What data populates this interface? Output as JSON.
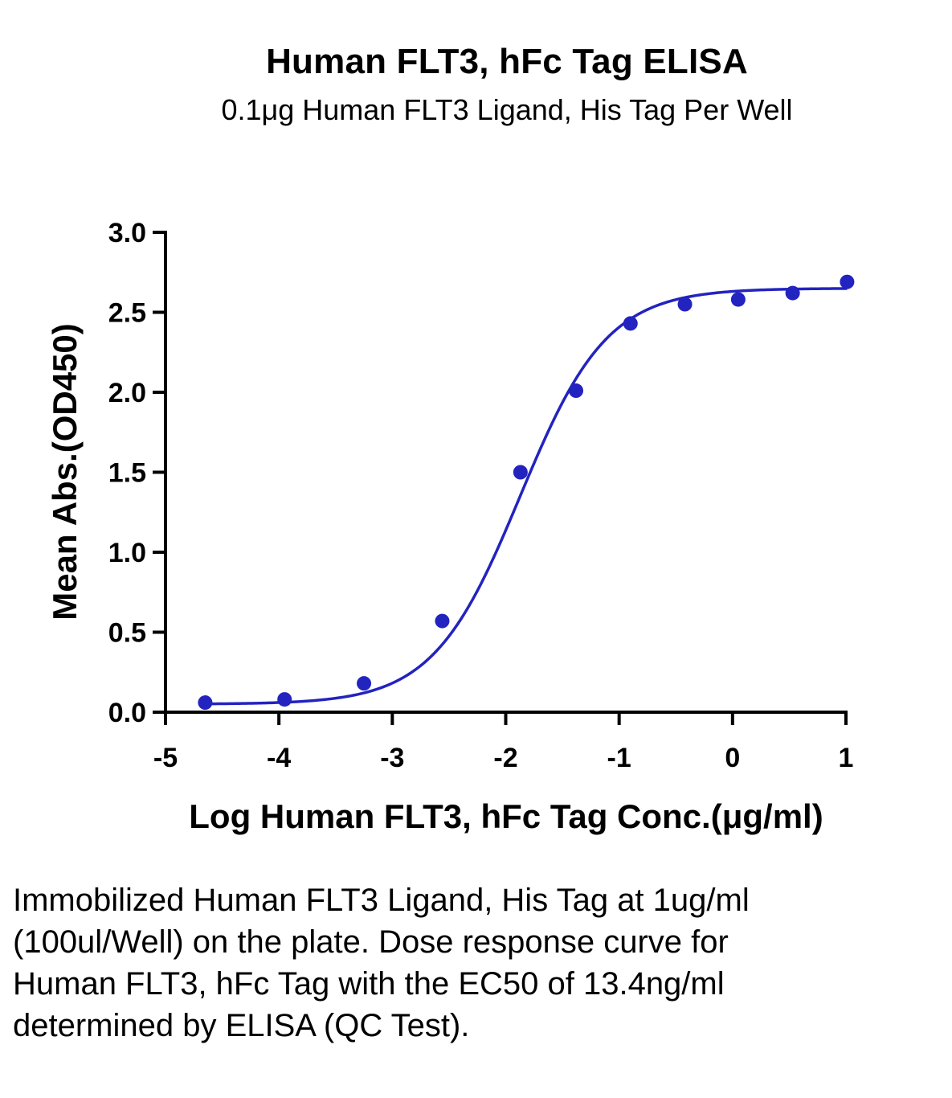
{
  "chart_data": {
    "type": "scatter",
    "title": "Human FLT3, hFc Tag ELISA",
    "subtitle": "0.1μg Human FLT3 Ligand, His Tag Per Well",
    "xlabel": "Log Human FLT3, hFc Tag Conc.(μg/ml)",
    "ylabel": "Mean Abs.(OD450)",
    "xlim": [
      -5,
      1
    ],
    "ylim": [
      0,
      3
    ],
    "xticks": [
      -5,
      -4,
      -3,
      -2,
      -1,
      0,
      1
    ],
    "yticks": [
      0,
      0.5,
      1,
      1.5,
      2,
      2.5,
      3
    ],
    "xtick_labels": [
      "-5",
      "-4",
      "-3",
      "-2",
      "-1",
      "0",
      "1"
    ],
    "ytick_labels": [
      "0.0",
      "0.5",
      "1.0",
      "1.5",
      "2.0",
      "2.5",
      "3.0"
    ],
    "grid": false,
    "color": "#2323c0",
    "series": [
      {
        "x": [
          -4.65,
          -3.95,
          -3.25,
          -2.56,
          -1.87,
          -1.38,
          -0.9,
          -0.42,
          0.05,
          0.53,
          1.01
        ],
        "y": [
          0.06,
          0.08,
          0.18,
          0.57,
          1.5,
          2.01,
          2.43,
          2.55,
          2.58,
          2.62,
          2.69
        ]
      }
    ],
    "fit": {
      "model": "4PL",
      "bottom": 0.05,
      "top": 2.65,
      "log_ec50": -1.873,
      "hill": 1.13
    }
  },
  "caption": "Immobilized Human FLT3 Ligand, His Tag at 1ug/ml (100ul/Well) on the plate. Dose response curve for Human FLT3, hFc Tag with the EC50 of 13.4ng/ml determined by ELISA (QC Test)."
}
